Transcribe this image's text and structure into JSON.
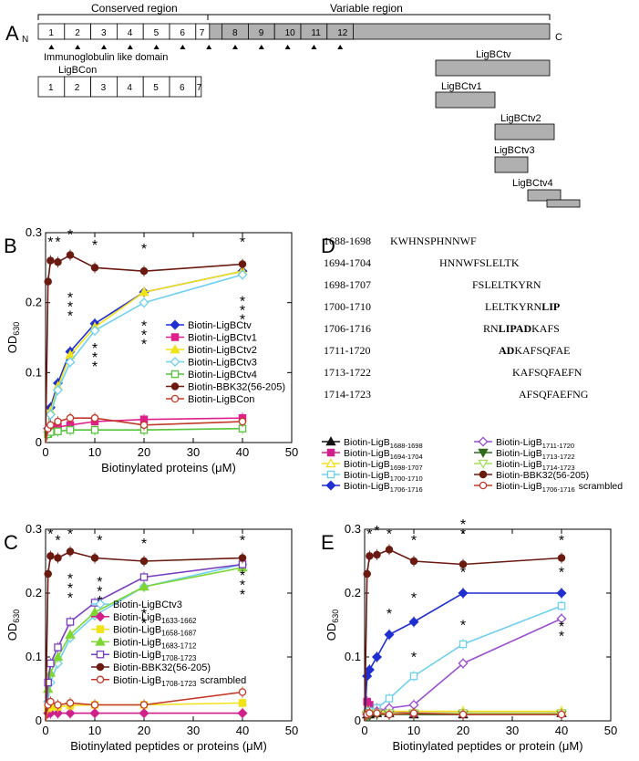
{
  "panelA": {
    "letter": "A",
    "n_label": "N",
    "c_label": "C",
    "conserved_label": "Conserved region",
    "variable_label": "Variable region",
    "domains": [
      "1",
      "2",
      "3",
      "4",
      "5",
      "6",
      "7",
      "8",
      "9",
      "10",
      "11",
      "12"
    ],
    "ig_label": "Immunoglobulin like domain",
    "con_label": "LigBCon",
    "con_domains": [
      "1",
      "2",
      "3",
      "4",
      "5",
      "6",
      "7"
    ],
    "fragments": [
      "LigBCtv",
      "LigBCtv1",
      "LigBCtv2",
      "LigBCtv3",
      "LigBCtv4"
    ]
  },
  "panelD": {
    "letter": "D",
    "peptides": [
      {
        "range": "1688-1698",
        "pre": "KWHNSPHNNWF",
        "bold": "",
        "post": ""
      },
      {
        "range": "1694-1704",
        "pre": "HNNWFSLELTK",
        "bold": "",
        "post": ""
      },
      {
        "range": "1698-1707",
        "pre": "FSLELTKYRN",
        "bold": "",
        "post": ""
      },
      {
        "range": "1700-1710",
        "pre": "LELTKYRN",
        "bold": "LIP",
        "post": ""
      },
      {
        "range": "1706-1716",
        "pre": "RN",
        "bold": "LIPAD",
        "post": "KAFS"
      },
      {
        "range": "1711-1720",
        "pre": "",
        "bold": "AD",
        "post": "KAFSQFAE"
      },
      {
        "range": "1713-1722",
        "pre": "KAFSQFAEFN",
        "bold": "",
        "post": ""
      },
      {
        "range": "1714-1723",
        "pre": "AFSQFAEFNG",
        "bold": "",
        "post": ""
      }
    ]
  },
  "chart_data": [
    {
      "panel": "B",
      "type": "line",
      "xlabel": "Biotinylated proteins (μM)",
      "ylabel": "OD630",
      "xlim": [
        0,
        50
      ],
      "ylim": [
        0,
        0.3
      ],
      "xticks": [
        0,
        10,
        20,
        30,
        40,
        50
      ],
      "yticks": [
        0,
        0.1,
        0.2,
        0.3
      ],
      "legend_position": "center-right",
      "series": [
        {
          "name": "Biotin-LigBCtv",
          "color": "#1f2fd0",
          "marker": "diamond",
          "filled": true,
          "x": [
            0,
            0.5,
            1,
            2.5,
            5,
            10,
            20,
            40
          ],
          "y": [
            0,
            0.02,
            0.05,
            0.085,
            0.13,
            0.17,
            0.215,
            0.245
          ]
        },
        {
          "name": "Biotin-LigBCtv1",
          "color": "#e0208a",
          "marker": "square",
          "filled": true,
          "x": [
            0,
            0.5,
            1,
            2.5,
            5,
            10,
            20,
            40
          ],
          "y": [
            0,
            0.015,
            0.02,
            0.022,
            0.025,
            0.03,
            0.033,
            0.035
          ]
        },
        {
          "name": "Biotin-LigBCtv2",
          "color": "#f2e21a",
          "marker": "triangle",
          "filled": true,
          "x": [
            0,
            0.5,
            1,
            2.5,
            5,
            10,
            20,
            40
          ],
          "y": [
            0,
            0.02,
            0.045,
            0.08,
            0.125,
            0.165,
            0.215,
            0.245
          ]
        },
        {
          "name": "Biotin-LigBCtv3",
          "color": "#6fd0ef",
          "marker": "diamond",
          "filled": false,
          "x": [
            0,
            0.5,
            1,
            2.5,
            5,
            10,
            20,
            40
          ],
          "y": [
            0,
            0.015,
            0.04,
            0.075,
            0.115,
            0.16,
            0.2,
            0.24
          ]
        },
        {
          "name": "Biotin-LigBCtv4",
          "color": "#55c43a",
          "marker": "square",
          "filled": false,
          "x": [
            0,
            0.5,
            1,
            2.5,
            5,
            10,
            20,
            40
          ],
          "y": [
            0,
            0.012,
            0.015,
            0.016,
            0.018,
            0.018,
            0.018,
            0.02
          ]
        },
        {
          "name": "Biotin-BBK32(56-205)",
          "color": "#6b1a10",
          "marker": "circle",
          "filled": true,
          "x": [
            0,
            0.5,
            1,
            2.5,
            5,
            10,
            20,
            40
          ],
          "y": [
            0,
            0.23,
            0.26,
            0.258,
            0.268,
            0.25,
            0.245,
            0.255
          ]
        },
        {
          "name": "Biotin-LigBCon",
          "color": "#c23a2a",
          "marker": "circle",
          "filled": false,
          "x": [
            0,
            0.5,
            1,
            2.5,
            5,
            10,
            20,
            40
          ],
          "y": [
            0,
            0.02,
            0.025,
            0.03,
            0.035,
            0.035,
            0.025,
            0.03
          ]
        }
      ]
    },
    {
      "panel": "C",
      "type": "line",
      "xlabel": "Biotinylated peptides or proteins (μM)",
      "ylabel": "OD630",
      "xlim": [
        0,
        50
      ],
      "ylim": [
        0,
        0.3
      ],
      "xticks": [
        0,
        10,
        20,
        30,
        40,
        50
      ],
      "yticks": [
        0,
        0.1,
        0.2,
        0.3
      ],
      "legend_position": "center-right",
      "series": [
        {
          "name": "Biotin-LigBCtv3",
          "sub": "",
          "suffix": "",
          "color": "#6fd0ef",
          "marker": "diamond",
          "filled": false,
          "x": [
            0,
            0.5,
            1,
            2.5,
            5,
            10,
            20,
            40
          ],
          "y": [
            0,
            0.03,
            0.06,
            0.09,
            0.13,
            0.165,
            0.21,
            0.245
          ]
        },
        {
          "name": "Biotin-LigB",
          "sub": "1633-1662",
          "suffix": "",
          "color": "#d0208a",
          "marker": "diamond",
          "filled": true,
          "x": [
            0,
            0.5,
            1,
            2.5,
            5,
            10,
            20,
            40
          ],
          "y": [
            0,
            0.012,
            0.012,
            0.012,
            0.012,
            0.012,
            0.012,
            0.012
          ]
        },
        {
          "name": "Biotin-LigB",
          "sub": "1658-1687",
          "suffix": "",
          "color": "#f2e21a",
          "marker": "square",
          "filled": true,
          "x": [
            0,
            0.5,
            1,
            2.5,
            5,
            10,
            20,
            40
          ],
          "y": [
            0,
            0.02,
            0.022,
            0.022,
            0.024,
            0.025,
            0.025,
            0.028
          ]
        },
        {
          "name": "Biotin-LigB",
          "sub": "1683-1712",
          "suffix": "",
          "color": "#7ed632",
          "marker": "triangle",
          "filled": true,
          "x": [
            0,
            0.5,
            1,
            2.5,
            5,
            10,
            20,
            40
          ],
          "y": [
            0,
            0.05,
            0.075,
            0.1,
            0.135,
            0.17,
            0.21,
            0.24
          ]
        },
        {
          "name": "Biotin-LigB",
          "sub": "1708-1723",
          "suffix": "",
          "color": "#7a3fc0",
          "marker": "square",
          "filled": false,
          "x": [
            0,
            0.5,
            1,
            2.5,
            5,
            10,
            20,
            40
          ],
          "y": [
            0,
            0.06,
            0.09,
            0.115,
            0.155,
            0.185,
            0.225,
            0.245
          ]
        },
        {
          "name": "Biotin-BBK32(56-205)",
          "sub": "",
          "suffix": "",
          "color": "#6b1a10",
          "marker": "circle",
          "filled": true,
          "x": [
            0,
            0.5,
            1,
            2.5,
            5,
            10,
            20,
            40
          ],
          "y": [
            0,
            0.23,
            0.258,
            0.255,
            0.265,
            0.255,
            0.25,
            0.255
          ]
        },
        {
          "name": "Biotin-LigB",
          "sub": "1708-1723",
          "suffix": "scrambled",
          "color": "#c23a2a",
          "marker": "circle",
          "filled": false,
          "x": [
            0,
            0.5,
            1,
            2.5,
            5,
            10,
            20,
            40
          ],
          "y": [
            0,
            0.025,
            0.03,
            0.025,
            0.028,
            0.025,
            0.025,
            0.045
          ]
        }
      ]
    },
    {
      "panel": "E",
      "type": "line",
      "xlabel": "Biotinylated peptides or protein (μM)",
      "ylabel": "OD630",
      "xlim": [
        0,
        50
      ],
      "ylim": [
        0,
        0.3
      ],
      "xticks": [
        0,
        10,
        20,
        30,
        40,
        50
      ],
      "yticks": [
        0,
        0.1,
        0.2,
        0.3
      ],
      "legend_position": "above plot",
      "series": [
        {
          "name": "Biotin-LigB",
          "sub": "1688-1698",
          "suffix": "",
          "color": "#111111",
          "marker": "triangle",
          "filled": true,
          "x": [
            0,
            0.5,
            1,
            2.5,
            5,
            10,
            20,
            40
          ],
          "y": [
            0,
            0.01,
            0.01,
            0.012,
            0.012,
            0.01,
            0.01,
            0.012
          ]
        },
        {
          "name": "Biotin-LigB",
          "sub": "1694-1704",
          "suffix": "",
          "color": "#d0208a",
          "marker": "square",
          "filled": true,
          "x": [
            0,
            0.5,
            1,
            2.5,
            5,
            10,
            20,
            40
          ],
          "y": [
            0,
            0.03,
            0.025,
            0.02,
            0.015,
            0.012,
            0.012,
            0.012
          ]
        },
        {
          "name": "Biotin-LigB",
          "sub": "1698-1707",
          "suffix": "",
          "color": "#f2e21a",
          "marker": "triangle",
          "filled": false,
          "x": [
            0,
            0.5,
            1,
            2.5,
            5,
            10,
            20,
            40
          ],
          "y": [
            0,
            0.015,
            0.015,
            0.015,
            0.015,
            0.015,
            0.015,
            0.015
          ]
        },
        {
          "name": "Biotin-LigB",
          "sub": "1700-1710",
          "suffix": "",
          "color": "#6fd0ef",
          "marker": "square",
          "filled": false,
          "x": [
            0,
            0.5,
            1,
            2.5,
            5,
            10,
            20,
            40
          ],
          "y": [
            0,
            0.012,
            0.015,
            0.02,
            0.035,
            0.07,
            0.12,
            0.18
          ]
        },
        {
          "name": "Biotin-LigB",
          "sub": "1706-1716",
          "suffix": "",
          "color": "#1f2fd0",
          "marker": "diamond",
          "filled": true,
          "x": [
            0,
            0.5,
            1,
            2.5,
            5,
            10,
            20,
            40
          ],
          "y": [
            0,
            0.07,
            0.08,
            0.1,
            0.135,
            0.155,
            0.2,
            0.2
          ]
        },
        {
          "name": "Biotin-LigB",
          "sub": "1711-1720",
          "suffix": "",
          "color": "#9a4fd0",
          "marker": "diamond",
          "filled": false,
          "x": [
            0,
            0.5,
            1,
            2.5,
            5,
            10,
            20,
            40
          ],
          "y": [
            0,
            0.01,
            0.012,
            0.015,
            0.02,
            0.025,
            0.09,
            0.16
          ]
        },
        {
          "name": "Biotin-LigB",
          "sub": "1713-1722",
          "suffix": "",
          "color": "#2f6a1a",
          "marker": "triangle-down",
          "filled": true,
          "x": [
            0,
            0.5,
            1,
            2.5,
            5,
            10,
            20,
            40
          ],
          "y": [
            0,
            0.008,
            0.008,
            0.01,
            0.01,
            0.01,
            0.01,
            0.01
          ]
        },
        {
          "name": "Biotin-LigB",
          "sub": "1714-1723",
          "suffix": "",
          "color": "#a6e05a",
          "marker": "triangle-down",
          "filled": false,
          "x": [
            0,
            0.5,
            1,
            2.5,
            5,
            10,
            20,
            40
          ],
          "y": [
            0,
            0.01,
            0.012,
            0.012,
            0.012,
            0.012,
            0.012,
            0.012
          ]
        },
        {
          "name": "Biotin-BBK32(56-205)",
          "sub": "",
          "suffix": "",
          "color": "#6b1a10",
          "marker": "circle",
          "filled": true,
          "x": [
            0,
            0.5,
            1,
            2.5,
            5,
            10,
            20,
            40
          ],
          "y": [
            0,
            0.23,
            0.258,
            0.26,
            0.268,
            0.25,
            0.245,
            0.255
          ]
        },
        {
          "name": "Biotin-LigB",
          "sub": "1706-1716",
          "suffix": "scrambled",
          "color": "#c23a2a",
          "marker": "circle",
          "filled": false,
          "x": [
            0,
            0.5,
            1,
            2.5,
            5,
            10,
            20,
            40
          ],
          "y": [
            0,
            0.01,
            0.012,
            0.012,
            0.01,
            0.012,
            0.01,
            0.01
          ]
        }
      ]
    }
  ]
}
